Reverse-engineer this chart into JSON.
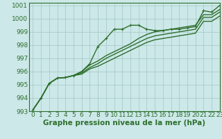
{
  "xlabel": "Graphe pression niveau de la mer (hPa)",
  "ylabel": "",
  "bg_color": "#cce8e8",
  "grid_color": "#aacccc",
  "line_color": "#2d6e2d",
  "xlim": [
    -0.5,
    23
  ],
  "ylim": [
    993,
    1001.2
  ],
  "yticks": [
    993,
    994,
    995,
    996,
    997,
    998,
    999,
    1000,
    1001
  ],
  "xticks": [
    0,
    1,
    2,
    3,
    4,
    5,
    6,
    7,
    8,
    9,
    10,
    11,
    12,
    13,
    14,
    15,
    16,
    17,
    18,
    19,
    20,
    21,
    22,
    23
  ],
  "series": [
    [
      993.1,
      994.0,
      995.1,
      995.5,
      995.55,
      995.7,
      996.0,
      996.6,
      997.9,
      998.5,
      999.2,
      999.2,
      999.5,
      999.5,
      999.2,
      999.1,
      999.1,
      999.2,
      999.2,
      999.3,
      999.4,
      1000.6,
      1000.5,
      1001.0
    ],
    [
      993.1,
      994.0,
      995.1,
      995.5,
      995.55,
      995.7,
      996.0,
      996.5,
      996.8,
      997.2,
      997.5,
      997.8,
      998.1,
      998.5,
      998.8,
      999.0,
      999.1,
      999.2,
      999.3,
      999.4,
      999.5,
      1000.3,
      1000.3,
      1000.7
    ],
    [
      993.1,
      994.0,
      995.1,
      995.5,
      995.55,
      995.7,
      995.9,
      996.3,
      996.6,
      997.0,
      997.3,
      997.6,
      997.9,
      998.2,
      998.5,
      998.7,
      998.8,
      998.9,
      999.0,
      999.1,
      999.2,
      1000.1,
      1000.1,
      1000.5
    ],
    [
      993.1,
      994.0,
      995.1,
      995.5,
      995.55,
      995.7,
      995.8,
      996.2,
      996.4,
      996.7,
      997.0,
      997.3,
      997.6,
      997.9,
      998.2,
      998.4,
      998.5,
      998.6,
      998.7,
      998.8,
      998.9,
      999.8,
      999.8,
      1000.2
    ]
  ],
  "marker_series": 0,
  "marker": "+",
  "marker_size": 3.5,
  "linewidth": 1.0,
  "font_color": "#2d6e2d",
  "font_size": 6.5,
  "xlabel_fontsize": 7.5,
  "xlabel_bold": true
}
